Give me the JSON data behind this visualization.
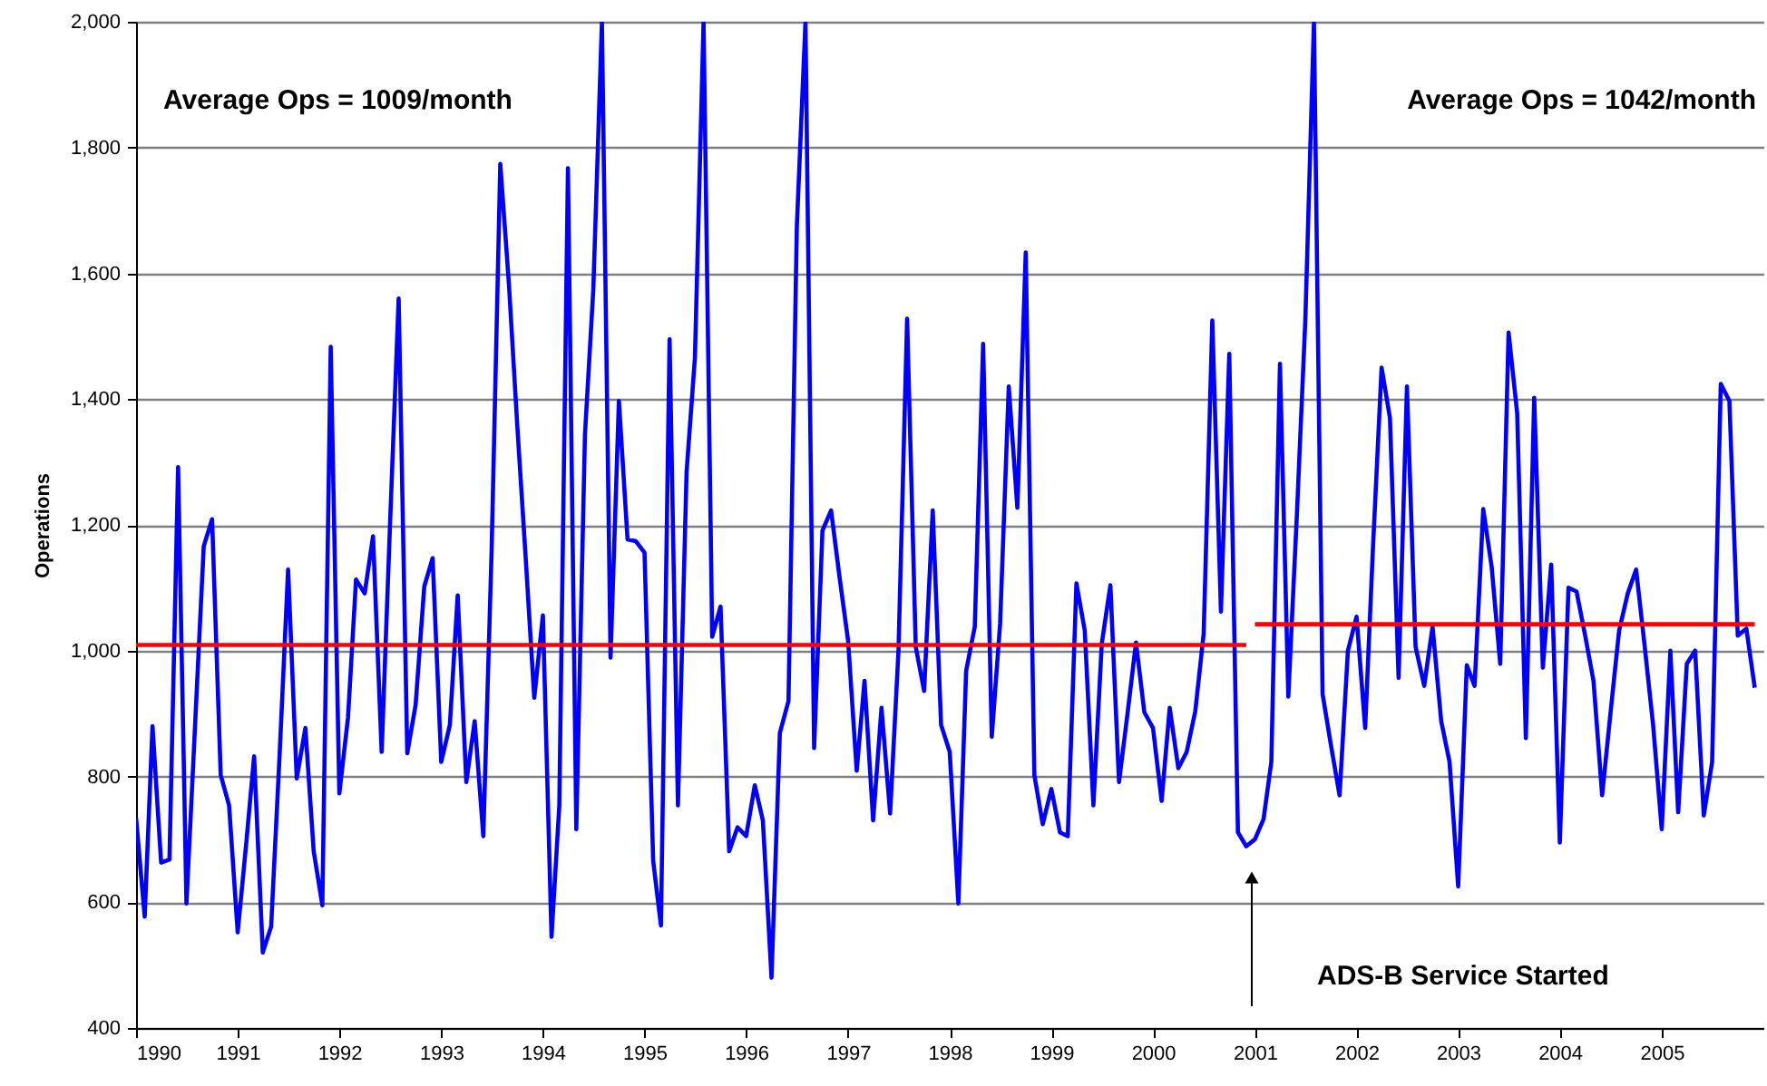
{
  "chart_data": {
    "type": "line",
    "ylabel": "Operations",
    "x": [
      "1990-01",
      "1990-02",
      "1990-03",
      "1990-04",
      "1990-05",
      "1990-06",
      "1990-07",
      "1990-08",
      "1990-09",
      "1990-10",
      "1990-11",
      "1990-12",
      "1991-01",
      "1991-02",
      "1991-03",
      "1991-04",
      "1991-05",
      "1991-06",
      "1991-07",
      "1991-08",
      "1991-09",
      "1991-10",
      "1991-11",
      "1991-12",
      "1992-01",
      "1992-02",
      "1992-03",
      "1992-04",
      "1992-05",
      "1992-06",
      "1992-07",
      "1992-08",
      "1992-09",
      "1992-10",
      "1992-11",
      "1992-12",
      "1993-01",
      "1993-02",
      "1993-03",
      "1993-04",
      "1993-05",
      "1993-06",
      "1993-07",
      "1993-08",
      "1993-09",
      "1993-10",
      "1993-11",
      "1993-12",
      "1994-01",
      "1994-02",
      "1994-03",
      "1994-04",
      "1994-05",
      "1994-06",
      "1994-07",
      "1994-08",
      "1994-09",
      "1994-10",
      "1994-11",
      "1994-12",
      "1995-01",
      "1995-02",
      "1995-03",
      "1995-04",
      "1995-05",
      "1995-06",
      "1995-07",
      "1995-08",
      "1995-09",
      "1995-10",
      "1995-11",
      "1995-12",
      "1996-01",
      "1996-02",
      "1996-03",
      "1996-04",
      "1996-05",
      "1996-06",
      "1996-07",
      "1996-08",
      "1996-09",
      "1996-10",
      "1996-11",
      "1996-12",
      "1997-01",
      "1997-02",
      "1997-03",
      "1997-04",
      "1997-05",
      "1997-06",
      "1997-07",
      "1997-08",
      "1997-09",
      "1997-10",
      "1997-11",
      "1997-12",
      "1998-01",
      "1998-02",
      "1998-03",
      "1998-04",
      "1998-05",
      "1998-06",
      "1998-07",
      "1998-08",
      "1998-09",
      "1998-10",
      "1998-11",
      "1998-12",
      "1999-01",
      "1999-02",
      "1999-03",
      "1999-04",
      "1999-05",
      "1999-06",
      "1999-07",
      "1999-08",
      "1999-09",
      "1999-10",
      "1999-11",
      "1999-12",
      "2000-01",
      "2000-02",
      "2000-03",
      "2000-04",
      "2000-05",
      "2000-06",
      "2000-07",
      "2000-08",
      "2000-09",
      "2000-10",
      "2000-11",
      "2000-12",
      "2001-01",
      "2001-02",
      "2001-03",
      "2001-04",
      "2001-05",
      "2001-06",
      "2001-07",
      "2001-08",
      "2001-09",
      "2001-10",
      "2001-11",
      "2001-12",
      "2002-01",
      "2002-02",
      "2002-03",
      "2002-04",
      "2002-05",
      "2002-06",
      "2002-07",
      "2002-08",
      "2002-09",
      "2002-10",
      "2002-11",
      "2002-12",
      "2003-01",
      "2003-02",
      "2003-03",
      "2003-04",
      "2003-05",
      "2003-06",
      "2003-07",
      "2003-08",
      "2003-09",
      "2003-10",
      "2003-11",
      "2003-12",
      "2004-01",
      "2004-02",
      "2004-03",
      "2004-04",
      "2004-05",
      "2004-06",
      "2004-07",
      "2004-08",
      "2004-09",
      "2004-10",
      "2004-11",
      "2004-12",
      "2005-01",
      "2005-02",
      "2005-03",
      "2005-04",
      "2005-05",
      "2005-06",
      "2005-07",
      "2005-08",
      "2005-09",
      "2005-10",
      "2005-11",
      "2005-12"
    ],
    "series": [
      {
        "color": "#0000ff",
        "values": [
          734,
          577,
          880,
          663,
          668,
          1292,
          598,
          882,
          1166,
          1209,
          802,
          754,
          552,
          695,
          832,
          520,
          561,
          839,
          1129,
          797,
          877,
          681,
          595,
          1483,
          773,
          893,
          1113,
          1091,
          1182,
          839,
          1200,
          1560,
          837,
          914,
          1102,
          1147,
          823,
          882,
          1088,
          791,
          888,
          705,
          1161,
          1774,
          1583,
          1358,
          1142,
          925,
          1056,
          545,
          754,
          1767,
          716,
          1343,
          1574,
          2000,
          989,
          1397,
          1177,
          1174,
          1156,
          666,
          563,
          1495,
          754,
          1284,
          1466,
          2000,
          1022,
          1070,
          681,
          719,
          705,
          786,
          730,
          480,
          869,
          920,
          1675,
          2000,
          845,
          1191,
          1223,
          1118,
          1016,
          809,
          952,
          730,
          909,
          741,
          1000,
          1528,
          1006,
          936,
          1223,
          882,
          839,
          598,
          968,
          1038,
          1488,
          863,
          1043,
          1420,
          1227,
          1633,
          802,
          724,
          780,
          711,
          705,
          1107,
          1032,
          754,
          1011,
          1104,
          791,
          898,
          1013,
          902,
          877,
          761,
          909,
          813,
          839,
          904,
          1027,
          1525,
          1062,
          1472,
          711,
          689,
          700,
          732,
          823,
          1456,
          927,
          1219,
          1525,
          2000,
          931,
          850,
          770,
          1000,
          1054,
          877,
          1164,
          1450,
          1370,
          957,
          1420,
          1006,
          944,
          1038,
          888,
          823,
          625,
          977,
          944,
          1225,
          1134,
          979,
          1506,
          1377,
          861,
          1402,
          973,
          1137,
          695,
          1100,
          1094,
          1024,
          952,
          770,
          901,
          1032,
          1091,
          1129,
          1006,
          882,
          716,
          1000,
          743,
          979,
          1000,
          738,
          823,
          1424,
          1397,
          1024,
          1035,
          941
        ]
      },
      {
        "type": "line",
        "color": "#ff0000",
        "x": [
          "1990-01",
          "2000-12"
        ],
        "values": [
          1009,
          1009
        ]
      },
      {
        "type": "line",
        "color": "#ff0000",
        "x": [
          "2001-01",
          "2005-12"
        ],
        "values": [
          1042,
          1042
        ]
      }
    ],
    "annotations": [
      "Average Ops = 1009/month",
      "Average Ops = 1042/month",
      "ADS-B Service Started"
    ],
    "xlim": [
      "1990",
      "2006"
    ],
    "xticks": [
      "1990",
      "1991",
      "1992",
      "1993",
      "1994",
      "1995",
      "1996",
      "1997",
      "1998",
      "1999",
      "2000",
      "2001",
      "2002",
      "2003",
      "2004",
      "2005"
    ],
    "ylim": [
      400,
      2000
    ],
    "yticks": [
      {
        "value": 400,
        "label": "400"
      },
      {
        "value": 600,
        "label": "600"
      },
      {
        "value": 800,
        "label": "800"
      },
      {
        "value": 1000,
        "label": "1,000"
      },
      {
        "value": 1200,
        "label": "1,200"
      },
      {
        "value": 1400,
        "label": "1,400"
      },
      {
        "value": 1600,
        "label": "1,600"
      },
      {
        "value": 1800,
        "label": "1,800"
      },
      {
        "value": 2000,
        "label": "2,000"
      }
    ],
    "grid": "y"
  }
}
